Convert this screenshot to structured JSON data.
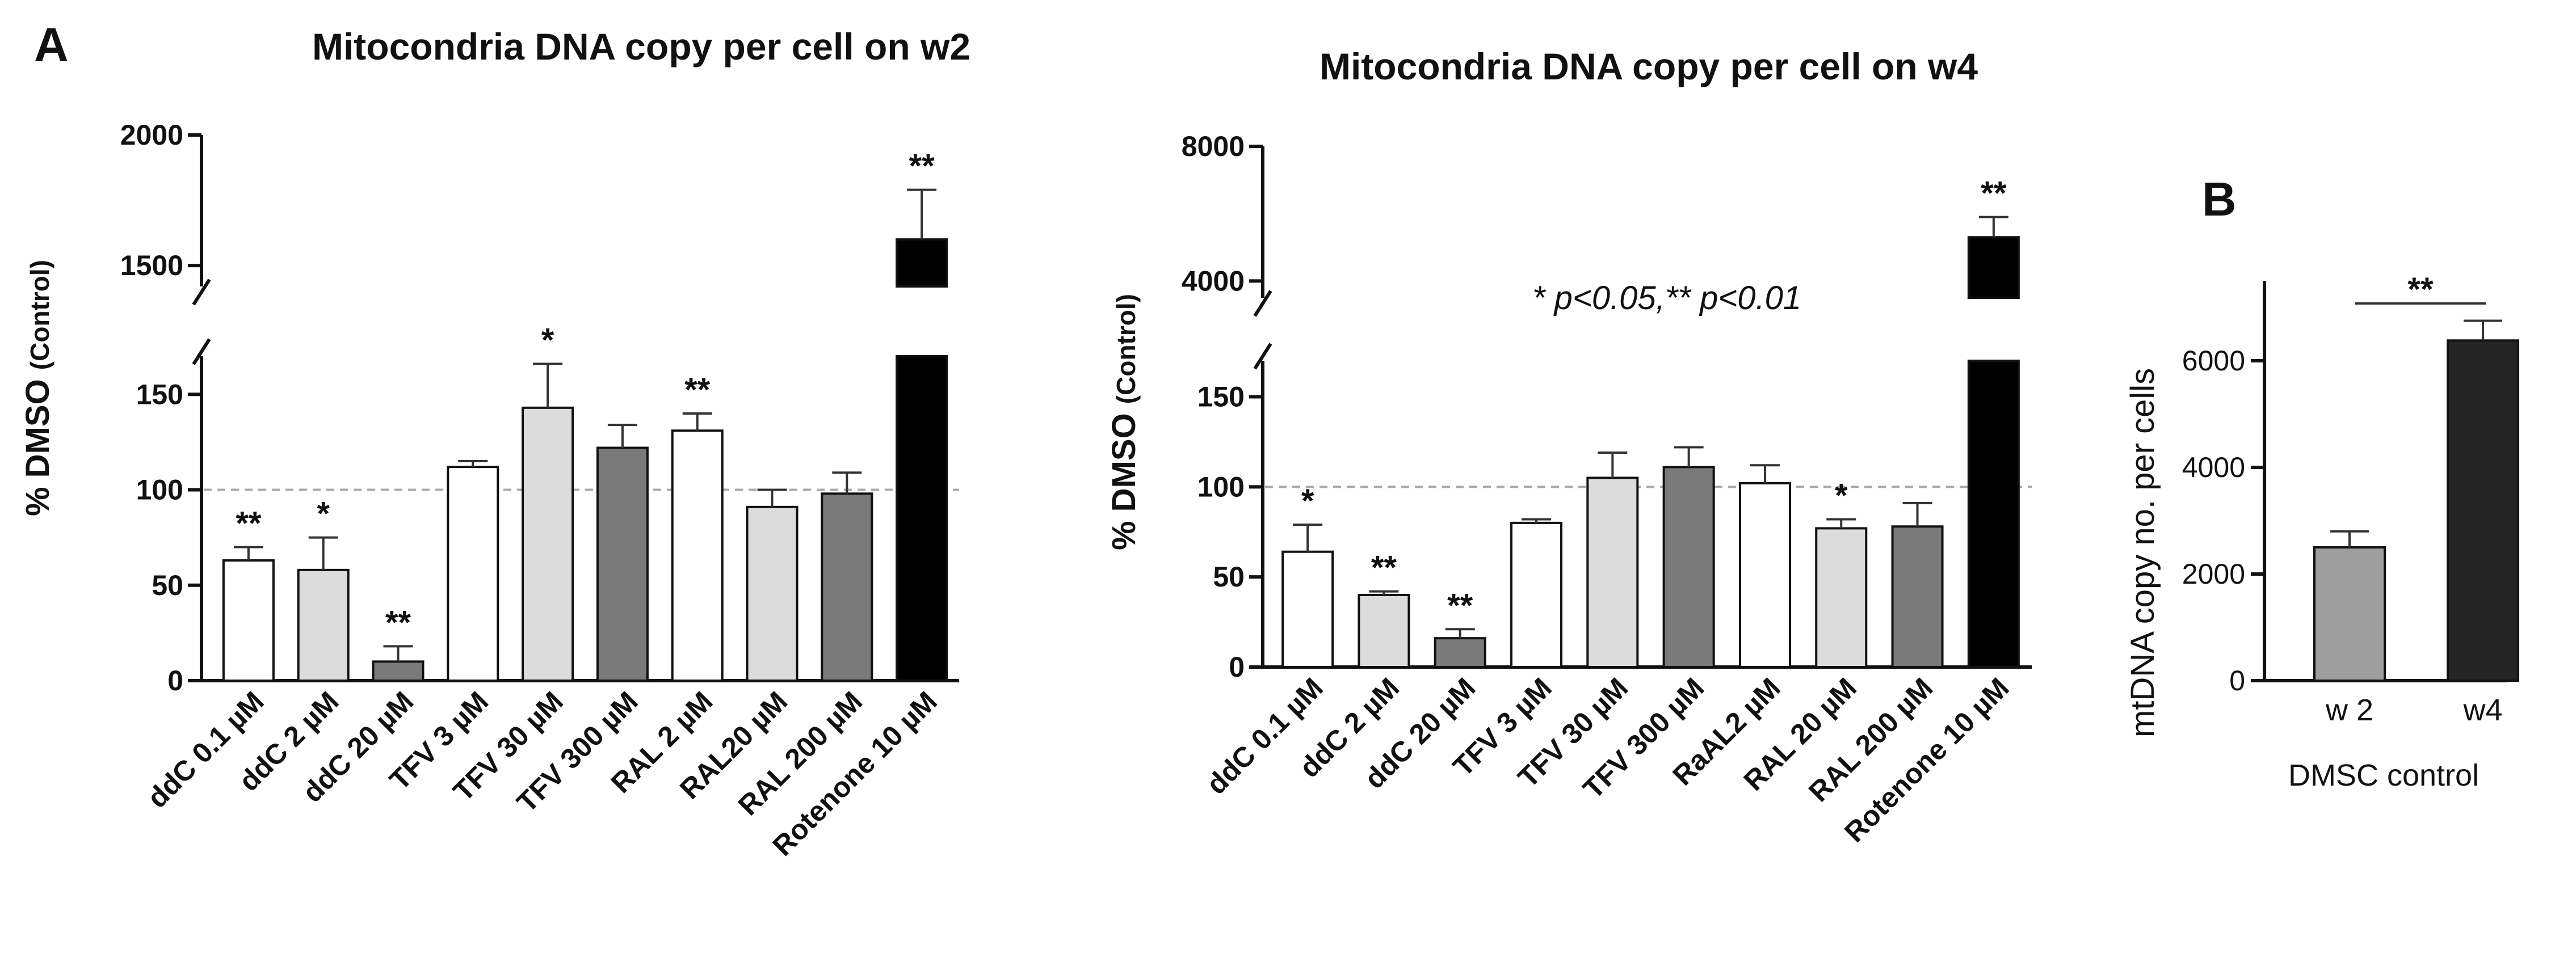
{
  "colors": {
    "white": "#ffffff",
    "light_gray": "#dcdcdc",
    "dark_gray": "#7a7a7a",
    "black": "#000000",
    "b_light": "#9e9e9e",
    "b_dark": "#252525"
  },
  "labels": {
    "panel_a": "A",
    "panel_b": "B",
    "significance_note": "* p<0.05,** p<0.01"
  },
  "chart_data": [
    {
      "id": "w2",
      "type": "bar",
      "title": "Mitocondria DNA copy per cell on w2",
      "ylabel_main": "% DMSO",
      "ylabel_sub": "(Control)",
      "broken_axis": true,
      "ylim_lower": [
        0,
        170
      ],
      "ylim_upper": [
        1420,
        2000
      ],
      "yticks_lower": [
        0,
        50,
        100,
        150
      ],
      "yticks_upper": [
        1500,
        2000
      ],
      "reference_line": 100,
      "categories": [
        "ddC 0.1 µM",
        "ddC 2 µM",
        "ddC 20 µM",
        "TFV 3 µM",
        "TFV 30 µM",
        "TFV 300 µM",
        "RAL 2 µM",
        "RAL20 µM",
        "RAL 200 µM",
        "Rotenone 10 µM"
      ],
      "values": [
        63,
        58,
        10,
        112,
        143,
        122,
        131,
        91,
        98,
        1600
      ],
      "errors": [
        7,
        17,
        8,
        3,
        23,
        12,
        9,
        9,
        11,
        190
      ],
      "fills": [
        "white",
        "light_gray",
        "dark_gray",
        "white",
        "light_gray",
        "dark_gray",
        "white",
        "light_gray",
        "dark_gray",
        "black"
      ],
      "significance": [
        "**",
        "*",
        "**",
        "",
        "*",
        "",
        "**",
        "",
        "",
        "**"
      ]
    },
    {
      "id": "w4",
      "type": "bar",
      "title": "Mitocondria DNA copy per cell on w4",
      "ylabel_main": "% DMSO",
      "ylabel_sub": "(Control)",
      "broken_axis": true,
      "ylim_lower": [
        0,
        170
      ],
      "ylim_upper": [
        3500,
        8000
      ],
      "yticks_lower": [
        0,
        50,
        100,
        150
      ],
      "yticks_upper": [
        4000,
        8000
      ],
      "reference_line": 100,
      "categories": [
        "ddC 0.1 µM",
        "ddC 2 µM",
        "ddC 20 µM",
        "TFV 3 µM",
        "TFV 30 µM",
        "TFV 300 µM",
        "RaAL2 µM",
        "RAL 20 µM",
        "RAL 200 µM",
        "Rotenone 10 µM"
      ],
      "values": [
        64,
        40,
        16,
        80,
        105,
        111,
        102,
        77,
        78,
        5300
      ],
      "errors": [
        15,
        2,
        5,
        2,
        14,
        11,
        10,
        5,
        13,
        600
      ],
      "fills": [
        "white",
        "light_gray",
        "dark_gray",
        "white",
        "light_gray",
        "dark_gray",
        "white",
        "light_gray",
        "dark_gray",
        "black"
      ],
      "significance": [
        "*",
        "**",
        "**",
        "",
        "",
        "",
        "",
        "*",
        "",
        "**"
      ]
    },
    {
      "id": "B",
      "type": "bar",
      "title": "",
      "ylabel": "mtDNA copy no. per cells",
      "xlabel": "DMSC control",
      "ylim": [
        0,
        7500
      ],
      "yticks": [
        0,
        2000,
        4000,
        6000
      ],
      "categories": [
        "w 2",
        "w4"
      ],
      "values": [
        2500,
        6380
      ],
      "errors": [
        300,
        370
      ],
      "fills": [
        "b_light",
        "b_dark"
      ],
      "bracket": "**"
    }
  ]
}
